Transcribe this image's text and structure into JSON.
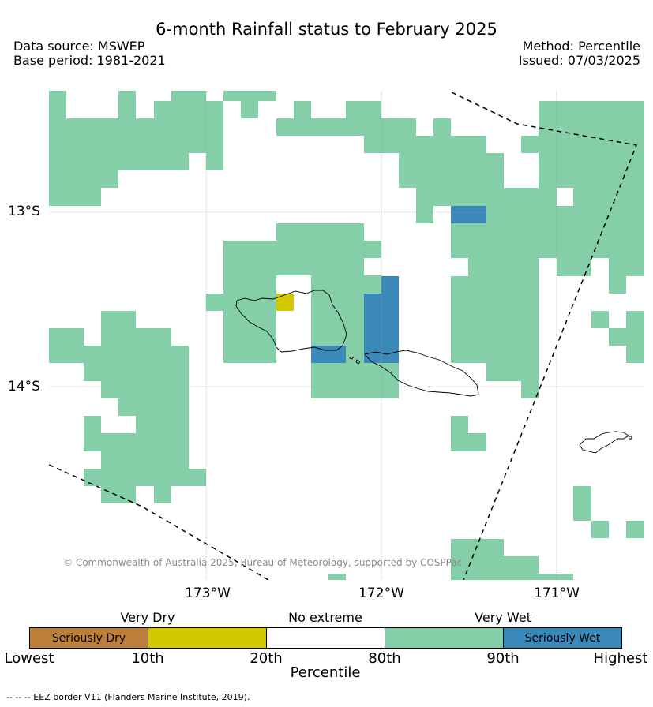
{
  "title": "6-month Rainfall status to February 2025",
  "meta": {
    "data_source": "Data source: MSWEP",
    "base_period": "Base period: 1981-2021",
    "method": "Method: Percentile",
    "issued": "Issued: 07/03/2025"
  },
  "axes": {
    "lon_labels": [
      "173°W",
      "172°W",
      "171°W"
    ],
    "lat_labels": [
      "13°S",
      "14°S"
    ]
  },
  "copyright": "© Commonwealth of Australia 2025, Bureau of Meteorology, supported by COSPPac",
  "legend": {
    "categories": {
      "very_dry": "Very Dry",
      "no_extreme": "No extreme",
      "very_wet": "Very Wet"
    },
    "classes": [
      {
        "label": "Seriously Dry",
        "color": "#bc803b"
      },
      {
        "label": "",
        "color": "#d4c800"
      },
      {
        "label": "",
        "color": "#ffffff"
      },
      {
        "label": "",
        "color": "#84cfa7"
      },
      {
        "label": "Seriously Wet",
        "color": "#3a89b9"
      }
    ],
    "ticks": [
      "Lowest",
      "10th",
      "20th",
      "80th",
      "90th",
      "Highest"
    ],
    "axis_label": "Percentile"
  },
  "footnote": "--  --  -- EEZ border V11 (Flanders Marine Institute, 2019)."
}
